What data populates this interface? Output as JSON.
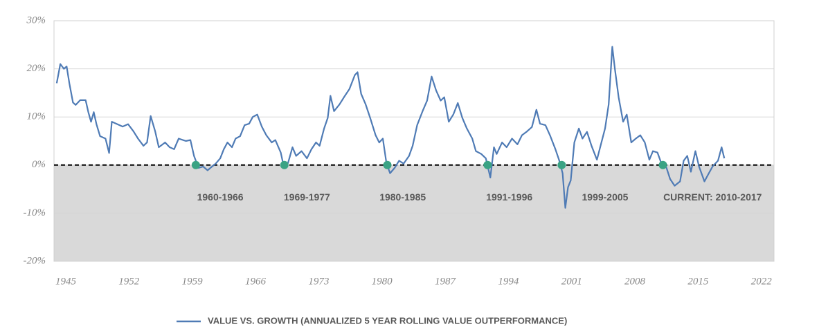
{
  "chart_data": {
    "type": "line",
    "x": [
      1944.0,
      1944.4,
      1944.8,
      1945.1,
      1945.4,
      1945.8,
      1946.1,
      1946.6,
      1947.2,
      1947.5,
      1947.8,
      1948.1,
      1948.4,
      1948.8,
      1949.4,
      1949.8,
      1950.1,
      1950.7,
      1951.3,
      1951.9,
      1952.5,
      1953.0,
      1953.6,
      1954.0,
      1954.4,
      1954.9,
      1955.3,
      1956.0,
      1956.5,
      1957.0,
      1957.5,
      1958.3,
      1958.8,
      1959.2,
      1959.7,
      1960.2,
      1960.7,
      1961.2,
      1961.6,
      1962.1,
      1962.5,
      1962.9,
      1963.4,
      1963.8,
      1964.3,
      1964.8,
      1965.3,
      1965.7,
      1966.2,
      1966.7,
      1967.2,
      1967.8,
      1968.2,
      1968.8,
      1969.1,
      1969.6,
      1970.1,
      1970.5,
      1971.1,
      1971.7,
      1972.2,
      1972.7,
      1973.1,
      1973.6,
      1974.0,
      1974.3,
      1974.7,
      1975.3,
      1975.8,
      1976.4,
      1977.0,
      1977.3,
      1977.7,
      1978.2,
      1978.7,
      1979.3,
      1979.7,
      1980.1,
      1980.5,
      1980.9,
      1981.4,
      1981.9,
      1982.4,
      1983.0,
      1983.4,
      1983.9,
      1984.5,
      1985.0,
      1985.5,
      1986.0,
      1986.5,
      1986.9,
      1987.4,
      1987.9,
      1988.4,
      1988.9,
      1989.4,
      1990.0,
      1990.4,
      1991.0,
      1991.5,
      1992.0,
      1992.4,
      1992.7,
      1993.3,
      1993.8,
      1994.4,
      1995.0,
      1995.5,
      1996.0,
      1996.6,
      1997.1,
      1997.5,
      1998.1,
      1998.6,
      1999.2,
      1999.6,
      2000.0,
      2000.3,
      2000.6,
      2000.9,
      2001.3,
      2001.8,
      2002.2,
      2002.7,
      2003.2,
      2003.8,
      2004.2,
      2004.7,
      2005.1,
      2005.5,
      2005.8,
      2006.2,
      2006.7,
      2007.1,
      2007.6,
      2008.1,
      2008.6,
      2009.1,
      2009.6,
      2010.0,
      2010.5,
      2011.0,
      2011.4,
      2011.9,
      2012.4,
      2013.0,
      2013.4,
      2013.8,
      2014.2,
      2014.7,
      2015.1,
      2015.7,
      2016.1,
      2016.6,
      2017.2,
      2017.6,
      2017.9
    ],
    "series": [
      {
        "name": "VALUE VS. GROWTH (ANNUALIZED 5 YEAR ROLLING VALUE OUTPERFORMANCE)",
        "color": "#4f7bb5",
        "values": [
          17,
          21,
          20,
          20.5,
          17,
          13,
          12.5,
          13.5,
          13.5,
          11,
          9,
          11,
          8.5,
          6,
          5.5,
          2.5,
          9,
          8.5,
          8,
          8.5,
          7,
          5.5,
          4,
          4.7,
          10.2,
          7,
          3.7,
          4.7,
          3.7,
          3.3,
          5.5,
          5,
          5.2,
          1.9,
          -0.6,
          -0.3,
          -1.1,
          -0.3,
          0.3,
          1.4,
          3.3,
          4.7,
          3.7,
          5.5,
          6,
          8.3,
          8.6,
          10,
          10.5,
          8,
          6.2,
          4.7,
          5.2,
          2.6,
          0,
          0.4,
          3.7,
          1.9,
          2.9,
          1.4,
          3.3,
          4.7,
          4,
          7.6,
          9.8,
          14.4,
          11.2,
          12.6,
          14.1,
          15.8,
          18.7,
          19.3,
          14.8,
          12.6,
          9.8,
          6.2,
          4.7,
          5.5,
          0.4,
          -1.7,
          -0.6,
          0.9,
          0.3,
          1.9,
          4,
          8.3,
          11.2,
          13.4,
          18.4,
          15.5,
          13.4,
          14.1,
          9,
          10.5,
          12.9,
          9.8,
          7.6,
          5.5,
          2.9,
          2.3,
          1.4,
          -2.6,
          3.7,
          2.3,
          4.7,
          3.7,
          5.5,
          4.3,
          6.2,
          6.9,
          7.9,
          11.5,
          8.6,
          8.3,
          6.2,
          3.3,
          1.1,
          -1.7,
          -8.9,
          -4.6,
          -3.2,
          4.7,
          7.6,
          5.5,
          6.9,
          4,
          1.1,
          4,
          7.6,
          12.6,
          24.6,
          19.8,
          14.1,
          9,
          10.5,
          4.7,
          5.5,
          6.2,
          4.7,
          1.1,
          2.9,
          2.6,
          0,
          0,
          -2.9,
          -4.3,
          -3.4,
          0.9,
          1.9,
          -1.4,
          2.9,
          -0.3,
          -3.4,
          -2,
          -0.3,
          0.9,
          3.7,
          1.4
        ]
      }
    ],
    "markers": {
      "color": "#3aa384",
      "x": [
        1959.4,
        1969.2,
        1980.6,
        1991.7,
        1999.9,
        2011.1
      ],
      "values": [
        0,
        0,
        0,
        0,
        0,
        0
      ]
    },
    "annotations": [
      {
        "text": "1960-1966",
        "x": 1962.1,
        "y": -6.8
      },
      {
        "text": "1969-1977",
        "x": 1971.7,
        "y": -6.8
      },
      {
        "text": "1980-1985",
        "x": 1982.3,
        "y": -6.8
      },
      {
        "text": "1991-1996",
        "x": 1994.1,
        "y": -6.8
      },
      {
        "text": "1999-2005",
        "x": 2004.7,
        "y": -6.8
      },
      {
        "text": "CURRENT: 2010-2017",
        "x": 2016.6,
        "y": -6.8
      }
    ],
    "reference_line": 0,
    "shade_below_color": "#d9d9d9",
    "xlim": [
      1943.7,
      2023.4
    ],
    "ylim": [
      -20,
      30
    ],
    "xticks": [
      1945,
      1952,
      1959,
      1966,
      1973,
      1980,
      1987,
      1994,
      2001,
      2008,
      2015,
      2022
    ],
    "yticks": [
      {
        "value": -20,
        "label": "-20%"
      },
      {
        "value": -10,
        "label": "-10%"
      },
      {
        "value": 0,
        "label": "0%"
      },
      {
        "value": 10,
        "label": "10%"
      },
      {
        "value": 20,
        "label": "20%"
      },
      {
        "value": 30,
        "label": "30%"
      }
    ],
    "grid": true
  }
}
